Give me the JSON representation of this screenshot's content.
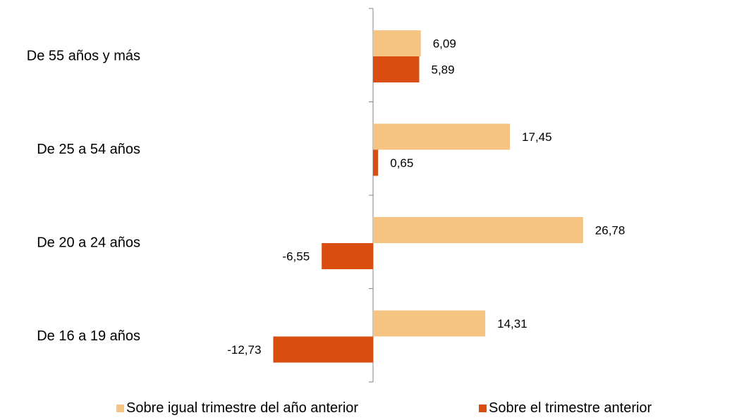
{
  "chart_data": {
    "type": "bar",
    "orientation": "horizontal",
    "categories": [
      "De 55 años y más",
      "De 25 a 54 años",
      "De 20 a 24 años",
      "De 16 a 19 años"
    ],
    "series": [
      {
        "name": "Sobre igual trimestre del año anterior",
        "values": [
          6.09,
          17.45,
          26.78,
          14.31
        ],
        "labels": [
          "6,09",
          "17,45",
          "26,78",
          "14,31"
        ],
        "color": "#F5C382"
      },
      {
        "name": "Sobre el trimestre anterior",
        "values": [
          5.89,
          0.65,
          -6.55,
          -12.73
        ],
        "labels": [
          "5,89",
          "0,65",
          "-6,55",
          "-12,73"
        ],
        "color": "#D94E10"
      }
    ],
    "title": "",
    "xlabel": "",
    "ylabel": "",
    "xlim": [
      -14.5,
      30
    ],
    "grid": false,
    "legend": "bottom"
  }
}
